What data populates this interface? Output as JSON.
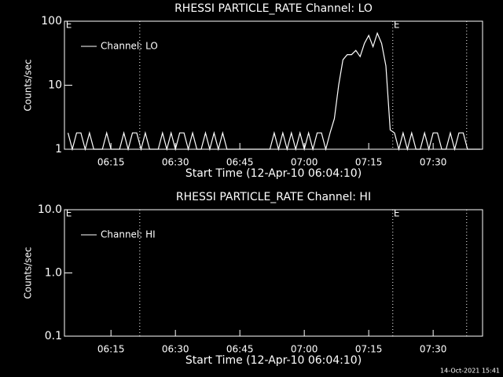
{
  "chart_data": [
    {
      "type": "line",
      "title": "RHESSI PARTICLE_RATE Channel: LO",
      "ylabel": "Counts/sec",
      "xlabel": "Start Time (12-Apr-10 06:04:10)",
      "log_y": true,
      "ylim": [
        1,
        100
      ],
      "yticks": [
        1,
        10,
        100
      ],
      "xlim": [
        364.17,
        461.5
      ],
      "xticks": [
        {
          "value": 375,
          "label": "06:15"
        },
        {
          "value": 390,
          "label": "06:30"
        },
        {
          "value": 405,
          "label": "06:45"
        },
        {
          "value": 420,
          "label": "07:00"
        },
        {
          "value": 435,
          "label": "07:15"
        },
        {
          "value": 450,
          "label": "07:30"
        }
      ],
      "vlines": [
        381.7,
        440.6,
        457.8
      ],
      "annotations": [
        {
          "x": 364.5,
          "text": "E"
        },
        {
          "x": 440.8,
          "text": "E"
        }
      ],
      "legend": "upper left",
      "x": [
        365,
        366,
        367,
        368,
        369,
        370,
        371,
        372,
        373,
        374,
        375,
        376,
        377,
        378,
        379,
        380,
        381,
        382,
        383,
        384,
        385,
        386,
        387,
        388,
        389,
        390,
        391,
        392,
        393,
        394,
        395,
        396,
        397,
        398,
        399,
        400,
        401,
        402,
        403,
        404,
        405,
        406,
        407,
        408,
        409,
        410,
        411,
        412,
        413,
        414,
        415,
        416,
        417,
        418,
        419,
        420,
        421,
        422,
        423,
        424,
        425,
        426,
        427,
        428,
        429,
        430,
        431,
        432,
        433,
        434,
        435,
        436,
        437,
        438,
        439,
        440,
        441,
        442,
        443,
        444,
        445,
        446,
        447,
        448,
        449,
        450,
        451,
        452,
        453,
        454,
        455,
        456,
        457,
        458,
        459,
        460,
        461
      ],
      "series": [
        {
          "name": "Channel: LO",
          "color": "#ffffff",
          "values": [
            1.8,
            1,
            1.8,
            1.8,
            1,
            1.8,
            1,
            1,
            1,
            1.8,
            1,
            1,
            1,
            1.8,
            1,
            1.8,
            1.8,
            1,
            1.8,
            1,
            1,
            1,
            1.8,
            1,
            1.8,
            1,
            1.8,
            1.8,
            1,
            1.8,
            1,
            1,
            1.8,
            1,
            1.8,
            1,
            1.8,
            1,
            1,
            1,
            1,
            1,
            1,
            1,
            1,
            1,
            1,
            1,
            1.8,
            1,
            1.8,
            1,
            1.8,
            1,
            1.8,
            1,
            1.8,
            1,
            1.8,
            1.8,
            1,
            1.8,
            3,
            10,
            25,
            30,
            30,
            35,
            28,
            45,
            60,
            40,
            65,
            45,
            20,
            2,
            1.8,
            1,
            1.8,
            1,
            1.8,
            1,
            1,
            1.8,
            1,
            1.8,
            1.8,
            1,
            1,
            1.8,
            1,
            1.8,
            1.8,
            1,
            1,
            1,
            1
          ]
        }
      ]
    },
    {
      "type": "line",
      "title": "RHESSI PARTICLE_RATE Channel: HI",
      "ylabel": "Counts/sec",
      "xlabel": "Start Time (12-Apr-10 06:04:10)",
      "log_y": true,
      "ylim": [
        0.1,
        10
      ],
      "yticks": [
        {
          "value": 0.1,
          "label": "0.1"
        },
        {
          "value": 1,
          "label": "1.0"
        },
        {
          "value": 10,
          "label": "10.0"
        }
      ],
      "xlim": [
        364.17,
        461.5
      ],
      "xticks": [
        {
          "value": 375,
          "label": "06:15"
        },
        {
          "value": 390,
          "label": "06:30"
        },
        {
          "value": 405,
          "label": "06:45"
        },
        {
          "value": 420,
          "label": "07:00"
        },
        {
          "value": 435,
          "label": "07:15"
        },
        {
          "value": 450,
          "label": "07:30"
        }
      ],
      "vlines": [
        381.7,
        440.6,
        457.8
      ],
      "annotations": [
        {
          "x": 364.5,
          "text": "E"
        },
        {
          "x": 440.8,
          "text": "E"
        }
      ],
      "legend": "upper left",
      "x": [],
      "series": [
        {
          "name": "Channel: HI",
          "color": "#ffffff",
          "values": []
        }
      ]
    }
  ],
  "footer": "14-Oct-2021 15:41"
}
